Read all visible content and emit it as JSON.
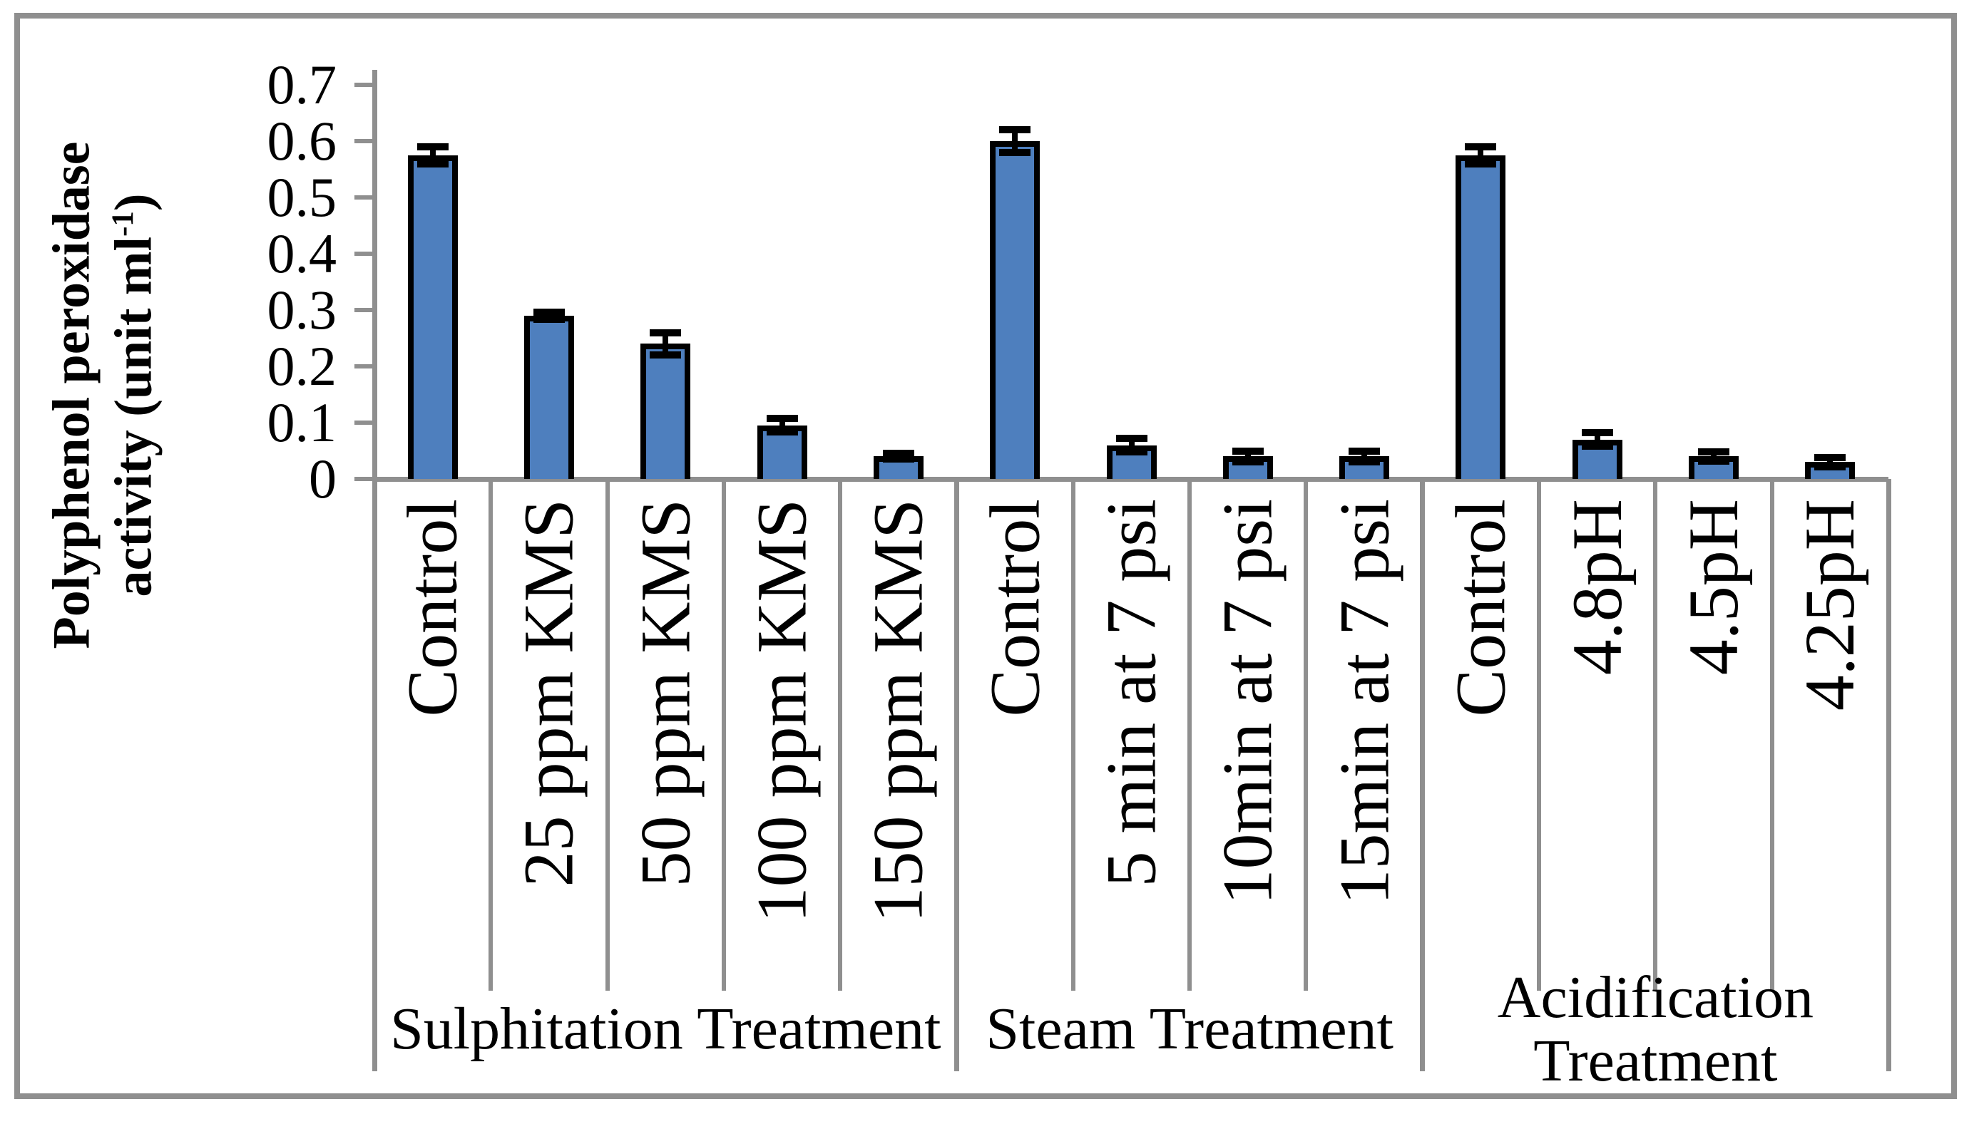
{
  "figure": {
    "background": "#ffffff",
    "border_color": "#8f8f8f",
    "axis_color": "#8f8f8f",
    "text_color": "#000000"
  },
  "chart_data": {
    "type": "bar",
    "title": "",
    "ylabel": {
      "line1": "Polyphenol peroxidase",
      "line2_pre": "activity (unit ml",
      "line2_sup": "-1",
      "line2_post": ")"
    },
    "ylabel_plain": "Polyphenol peroxidase activity (unit ml-1)",
    "ylim": [
      0,
      0.7
    ],
    "ytick_step": 0.1,
    "ytick_labels": [
      "0",
      "0.1",
      "0.2",
      "0.3",
      "0.4",
      "0.5",
      "0.6",
      "0.7"
    ],
    "grid": false,
    "legend": "none",
    "bar_color": "#4E7FBE",
    "bar_border_color": "#000000",
    "error_bar_color": "#000000",
    "groups": [
      {
        "label_lines": [
          "Sulphitation Treatment"
        ],
        "categories": [
          "Control",
          "25 ppm KMS",
          "50 ppm KMS",
          "100 ppm KMS",
          "150 ppm KMS"
        ],
        "values": [
          0.575,
          0.29,
          0.24,
          0.095,
          0.04
        ],
        "errors": [
          0.015,
          0.006,
          0.02,
          0.012,
          0.005
        ]
      },
      {
        "label_lines": [
          "Steam Treatment"
        ],
        "categories": [
          "Control",
          "5 min at 7 psi",
          "10min at 7 psi",
          "15min at 7 psi"
        ],
        "values": [
          0.6,
          0.06,
          0.04,
          0.04
        ],
        "errors": [
          0.02,
          0.012,
          0.01,
          0.01
        ]
      },
      {
        "label_lines": [
          "Acidification",
          "Treatment"
        ],
        "categories": [
          "Control",
          "4.8pH",
          "4.5pH",
          "4.25pH"
        ],
        "values": [
          0.575,
          0.07,
          0.04,
          0.03
        ],
        "errors": [
          0.015,
          0.012,
          0.008,
          0.008
        ]
      }
    ]
  }
}
